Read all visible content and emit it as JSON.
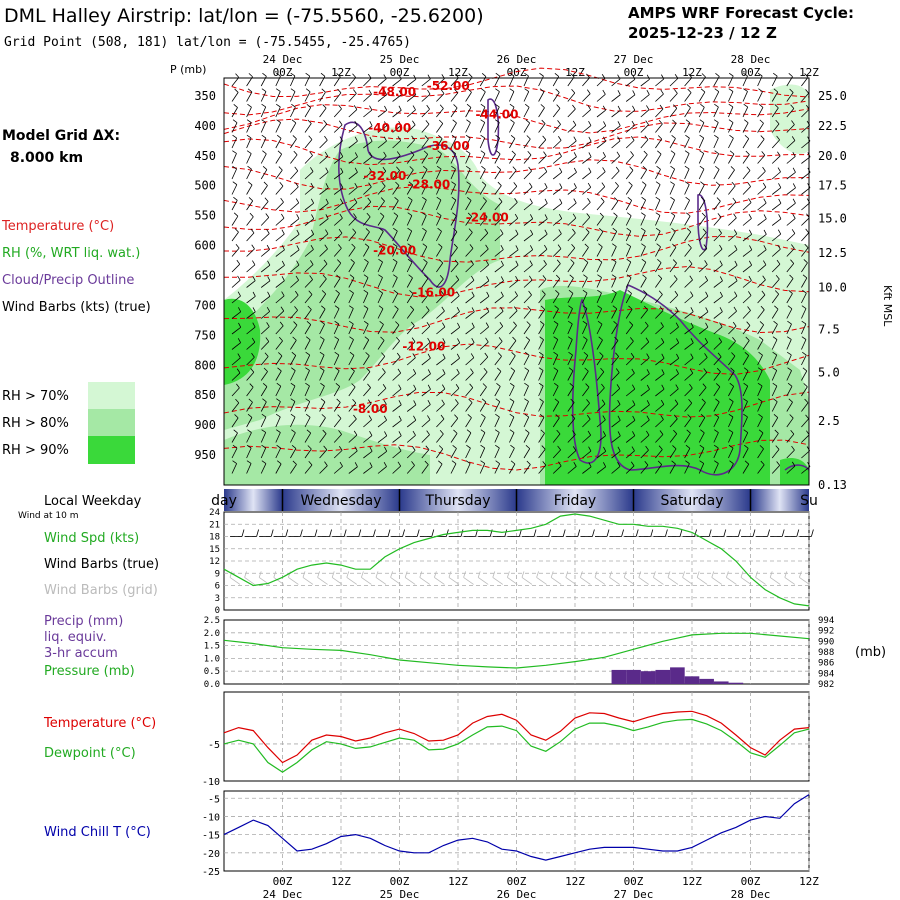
{
  "header": {
    "title": "DML Halley Airstrip:  lat/lon = (-75.5560, -25.6200)",
    "subtitle": "Grid Point (508, 181) lat/lon = (-75.5455, -25.4765)",
    "cycle_label": "AMPS WRF Forecast Cycle:",
    "cycle_value": "2025-12-23 / 12  Z",
    "model_grid_label": "Model Grid ΔX:",
    "model_grid_value": "8.000 km"
  },
  "legend": {
    "temperature": "Temperature (°C)",
    "rh": "RH (%, WRT liq. wat.)",
    "cloud": "Cloud/Precip Outline",
    "wind": "Wind Barbs (kts) (true)",
    "rh70": "RH > 70%",
    "rh80": "RH > 80%",
    "rh90": "RH > 90%",
    "colors": {
      "rh70": "#d4f7d4",
      "rh80": "#a5e8a5",
      "rh90": "#3ad93a",
      "temp": "#e00000",
      "cloud": "#5a2a8a",
      "wind_spd": "#22bb22",
      "dew": "#22bb22",
      "chill": "#0000aa",
      "precip": "#5a2a8a"
    }
  },
  "time_axis": {
    "hour_ticks": [
      "00Z",
      "12Z",
      "00Z",
      "12Z",
      "00Z",
      "12Z",
      "00Z",
      "12Z",
      "00Z",
      "12Z"
    ],
    "hour_offsets": [
      12,
      24,
      36,
      48,
      60,
      72,
      84,
      96,
      108,
      120
    ],
    "day_ticks": [
      "24 Dec",
      "25 Dec",
      "26 Dec",
      "27 Dec",
      "28 Dec"
    ],
    "day_offsets": [
      12,
      36,
      60,
      84,
      108
    ],
    "range_hours": [
      0,
      120
    ]
  },
  "weekday_bar": {
    "label": "Local Weekday",
    "days": [
      "day",
      "Wednesday",
      "Thursday",
      "Friday",
      "Saturday",
      "Su"
    ],
    "day_starts": [
      -12,
      12,
      36,
      60,
      84,
      108
    ]
  },
  "chart_data": [
    {
      "type": "heatmap",
      "name": "upper-air-cross-section",
      "y_axis_label": "P (mb)",
      "pressure_ticks": [
        350,
        400,
        450,
        500,
        550,
        600,
        650,
        700,
        750,
        800,
        850,
        900,
        950
      ],
      "ylim": [
        1000,
        320
      ],
      "right_axis_label": "Kft MSL",
      "height_ticks": [
        "25.0",
        "22.5",
        "20.0",
        "17.5",
        "15.0",
        "12.5",
        "10.0",
        "7.5",
        "5.0",
        "2.5",
        "0.13"
      ],
      "height_tick_pressures": [
        350,
        400,
        450,
        500,
        555,
        612,
        670,
        740,
        812,
        893,
        1000
      ],
      "temperature_labels": [
        {
          "text": "-48.00",
          "t": 35,
          "p": 350
        },
        {
          "text": "-52.00",
          "t": 46,
          "p": 340
        },
        {
          "text": "-44.00",
          "t": 56,
          "p": 388
        },
        {
          "text": "-40.00",
          "t": 34,
          "p": 410
        },
        {
          "text": "-36.00",
          "t": 46,
          "p": 440
        },
        {
          "text": "-32.00",
          "t": 33,
          "p": 490
        },
        {
          "text": "-28.00",
          "t": 42,
          "p": 505
        },
        {
          "text": "-24.00",
          "t": 54,
          "p": 560
        },
        {
          "text": "-20.00",
          "t": 35,
          "p": 615
        },
        {
          "text": "-16.00",
          "t": 43,
          "p": 685
        },
        {
          "text": "-12.00",
          "t": 41,
          "p": 775
        },
        {
          "text": "-8.00",
          "t": 30,
          "p": 880
        }
      ]
    },
    {
      "type": "line",
      "name": "wind-panel",
      "label_wind_at": "Wind at 10 m",
      "series_label_speed": "Wind Spd (kts)",
      "series_label_barbs_true": "Wind Barbs (true)",
      "series_label_barbs_grid": "Wind Barbs (grid)",
      "y_ticks": [
        0,
        3,
        6,
        9,
        12,
        15,
        18,
        21,
        24
      ],
      "ylim": [
        0,
        24
      ],
      "x": [
        0,
        3,
        6,
        9,
        12,
        15,
        18,
        21,
        24,
        27,
        30,
        33,
        36,
        39,
        42,
        45,
        48,
        51,
        54,
        57,
        60,
        63,
        66,
        69,
        72,
        75,
        78,
        81,
        84,
        87,
        90,
        93,
        96,
        99,
        102,
        105,
        108,
        111,
        114,
        117,
        120
      ],
      "speed": [
        10,
        8,
        6,
        6.5,
        8,
        10,
        11,
        11.5,
        11,
        10,
        10,
        13,
        15,
        16.5,
        17.5,
        18.5,
        19,
        19.5,
        19.5,
        19,
        19.5,
        20,
        21,
        23,
        23.5,
        23,
        22,
        21,
        21,
        20.5,
        20.5,
        20,
        19,
        17,
        15,
        12,
        8,
        5,
        3,
        1.5,
        1
      ]
    },
    {
      "type": "bar",
      "name": "precip-pressure-panel",
      "series_label_precip": "Precip (mm)",
      "series_label_precip_2": "liq. equiv.",
      "series_label_precip_3": "3-hr accum",
      "series_label_pressure": "Pressure (mb)",
      "left_ticks": [
        "0.0",
        "0.5",
        "1.0",
        "1.5",
        "2.0",
        "2.5"
      ],
      "left_tick_values": [
        0,
        0.5,
        1,
        1.5,
        2,
        2.5
      ],
      "left_ylim": [
        0,
        2.5
      ],
      "right_ticks": [
        "982",
        "984",
        "986",
        "988",
        "990",
        "992",
        "994"
      ],
      "right_tick_values": [
        982,
        984,
        986,
        988,
        990,
        992,
        994
      ],
      "right_ylim": [
        982,
        994
      ],
      "right_unit": "(mb)",
      "precip_t": [
        81,
        84,
        87,
        90,
        93,
        96,
        99,
        102,
        105
      ],
      "precip_mm": [
        0.55,
        0.55,
        0.5,
        0.55,
        0.65,
        0.3,
        0.2,
        0.1,
        0.05
      ],
      "pressure_x": [
        0,
        6,
        12,
        18,
        24,
        30,
        36,
        42,
        48,
        54,
        60,
        66,
        72,
        78,
        84,
        90,
        96,
        102,
        108,
        114,
        120
      ],
      "pressure_mb": [
        990.2,
        989.6,
        988.8,
        988.5,
        988.3,
        987.5,
        986.5,
        986.0,
        985.5,
        985.2,
        985.0,
        985.5,
        986.2,
        987.0,
        988.5,
        990.0,
        991.2,
        991.5,
        991.5,
        991.0,
        990.5
      ]
    },
    {
      "type": "line",
      "name": "temperature-panel",
      "series_label_temp": "Temperature (°C)",
      "series_label_dew": "Dewpoint (°C)",
      "y_ticks": [
        "-5",
        "-10"
      ],
      "y_tick_values": [
        -5,
        -10
      ],
      "ylim": [
        -10,
        2
      ],
      "x": [
        0,
        3,
        6,
        9,
        12,
        15,
        18,
        21,
        24,
        27,
        30,
        33,
        36,
        39,
        42,
        45,
        48,
        51,
        54,
        57,
        60,
        63,
        66,
        69,
        72,
        75,
        78,
        81,
        84,
        87,
        90,
        93,
        96,
        99,
        102,
        105,
        108,
        111,
        114,
        117,
        120
      ],
      "temp": [
        -3.5,
        -2.8,
        -3.2,
        -5.5,
        -7.5,
        -6.5,
        -4.5,
        -3.8,
        -4,
        -4.6,
        -4.2,
        -3.5,
        -3,
        -3.6,
        -4.6,
        -4.5,
        -3.8,
        -2.2,
        -1.3,
        -1,
        -1.8,
        -3.8,
        -4.5,
        -3.3,
        -1.5,
        -0.8,
        -0.9,
        -1.5,
        -2,
        -1.4,
        -0.9,
        -0.7,
        -0.6,
        -1.2,
        -2.2,
        -3.8,
        -5.5,
        -6.5,
        -4.5,
        -3,
        -2.8
      ],
      "dew": [
        -5,
        -4.5,
        -5,
        -7.5,
        -8.8,
        -7.5,
        -5.8,
        -4.7,
        -5,
        -5.6,
        -5.4,
        -4.8,
        -4.2,
        -4.5,
        -5.8,
        -5.7,
        -5,
        -3.8,
        -2.7,
        -2.6,
        -3.2,
        -5.3,
        -6,
        -4.7,
        -3,
        -2.2,
        -2.2,
        -2.6,
        -3.2,
        -2.7,
        -2.1,
        -1.8,
        -1.7,
        -2.3,
        -3.2,
        -4.6,
        -6.2,
        -6.8,
        -5.2,
        -3.5,
        -3
      ]
    },
    {
      "type": "line",
      "name": "wind-chill-panel",
      "series_label": "Wind Chill T (°C)",
      "y_ticks": [
        "-5",
        "-10",
        "-15",
        "-20",
        "-25"
      ],
      "y_tick_values": [
        -5,
        -10,
        -15,
        -20,
        -25
      ],
      "ylim": [
        -25,
        -3
      ],
      "x": [
        0,
        3,
        6,
        9,
        12,
        15,
        18,
        21,
        24,
        27,
        30,
        33,
        36,
        39,
        42,
        45,
        48,
        51,
        54,
        57,
        60,
        63,
        66,
        69,
        72,
        75,
        78,
        81,
        84,
        87,
        90,
        93,
        96,
        99,
        102,
        105,
        108,
        111,
        114,
        117,
        120
      ],
      "chill": [
        -15,
        -13,
        -11,
        -12.5,
        -16,
        -19.5,
        -19,
        -17.5,
        -15.5,
        -15,
        -16,
        -18,
        -19.5,
        -20,
        -20,
        -18,
        -16.5,
        -16,
        -17,
        -19,
        -19.5,
        -21,
        -22,
        -21,
        -20,
        -19,
        -18.5,
        -18.5,
        -18.5,
        -19,
        -19.5,
        -19.5,
        -18.5,
        -16.5,
        -14.5,
        -13,
        -11,
        -10,
        -10.5,
        -6.5,
        -4
      ]
    }
  ]
}
